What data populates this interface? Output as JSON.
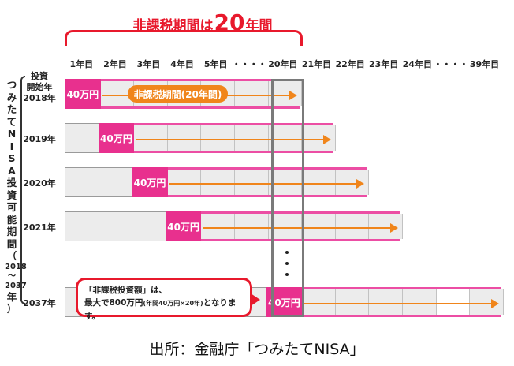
{
  "title": {
    "prefix": "非課税期間は",
    "number": "20",
    "suffix": "年間"
  },
  "column_headers": [
    "1年目",
    "2年目",
    "3年目",
    "4年目",
    "5年目",
    "・・・・",
    "20年目",
    "21年目",
    "22年目",
    "23年目",
    "24年目",
    "・・・・",
    "39年目"
  ],
  "vertical_label": [
    "つ",
    "み",
    "た",
    "て",
    "N",
    "I",
    "S",
    "A",
    "投",
    "資",
    "可",
    "能",
    "期",
    "間",
    "（"
  ],
  "vertical_label_years": [
    "2018",
    "〜",
    "2037"
  ],
  "vertical_label_end": [
    "年",
    "）"
  ],
  "rows": [
    {
      "label_lines": [
        "投資",
        "開始年",
        "2018年"
      ],
      "amount": "40万円",
      "start_col": 0,
      "pill": "非課税期間(20年間)"
    },
    {
      "label_lines": [
        "2019年"
      ],
      "amount": "40万円",
      "start_col": 1,
      "pill": ""
    },
    {
      "label_lines": [
        "2020年"
      ],
      "amount": "40万円",
      "start_col": 2,
      "pill": ""
    },
    {
      "label_lines": [
        "2021年"
      ],
      "amount": "40万円",
      "start_col": 3,
      "pill": ""
    },
    {
      "label_lines": [
        "2037年"
      ],
      "amount": "40万円",
      "start_col": 6,
      "pill": ""
    }
  ],
  "callout": {
    "line1": "「非課税投資額」は、",
    "line2_pre": "最大で800万円",
    "line2_small": "(年間40万円×20年)",
    "line2_post": "となります。"
  },
  "source": "出所：金融庁「つみたてNISA」",
  "colors": {
    "accent_red": "#e8192c",
    "pink": "#e8308e",
    "orange_arrow": "#f0851b",
    "cell_gray": "#ececec"
  }
}
